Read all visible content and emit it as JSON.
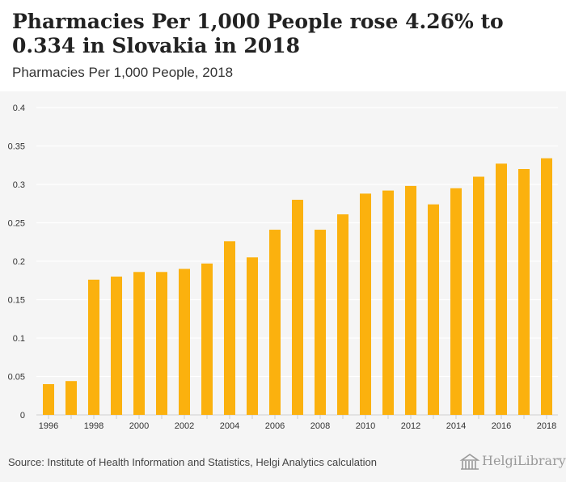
{
  "header": {
    "title": "Pharmacies Per 1,000 People rose 4.26% to 0.334 in Slovakia in 2018",
    "subtitle": "Pharmacies Per 1,000 People, 2018"
  },
  "footer": {
    "source": "Source: Institute of Health Information and Statistics, Helgi Analytics calculation",
    "logo_text": "HelgiLibrary",
    "logo_icon": "library-building-icon"
  },
  "colors": {
    "bar": "#FBB10E",
    "plot_background": "#f5f5f5",
    "grid": "#ffffff",
    "axis_text": "#333333"
  },
  "chart_data": {
    "type": "bar",
    "title": "Pharmacies Per 1,000 People rose 4.26% to 0.334 in Slovakia in 2018",
    "subtitle": "Pharmacies Per 1,000 People, 2018",
    "categories": [
      "1996",
      "1997",
      "1998",
      "1999",
      "2000",
      "2001",
      "2002",
      "2003",
      "2004",
      "2005",
      "2006",
      "2007",
      "2008",
      "2009",
      "2010",
      "2011",
      "2012",
      "2013",
      "2014",
      "2015",
      "2016",
      "2017",
      "2018"
    ],
    "x_tick_labels": [
      "1996",
      "1998",
      "2000",
      "2002",
      "2004",
      "2006",
      "2008",
      "2010",
      "2012",
      "2014",
      "2016",
      "2018"
    ],
    "values": [
      0.04,
      0.044,
      0.176,
      0.18,
      0.186,
      0.186,
      0.19,
      0.197,
      0.226,
      0.205,
      0.241,
      0.28,
      0.241,
      0.261,
      0.288,
      0.292,
      0.298,
      0.274,
      0.295,
      0.31,
      0.327,
      0.32,
      0.334
    ],
    "y_ticks": [
      "0",
      "0.05",
      "0.1",
      "0.15",
      "0.2",
      "0.25",
      "0.3",
      "0.35",
      "0.4"
    ],
    "ylim": [
      0,
      0.4
    ],
    "grid": true,
    "xlabel": "",
    "ylabel": ""
  }
}
